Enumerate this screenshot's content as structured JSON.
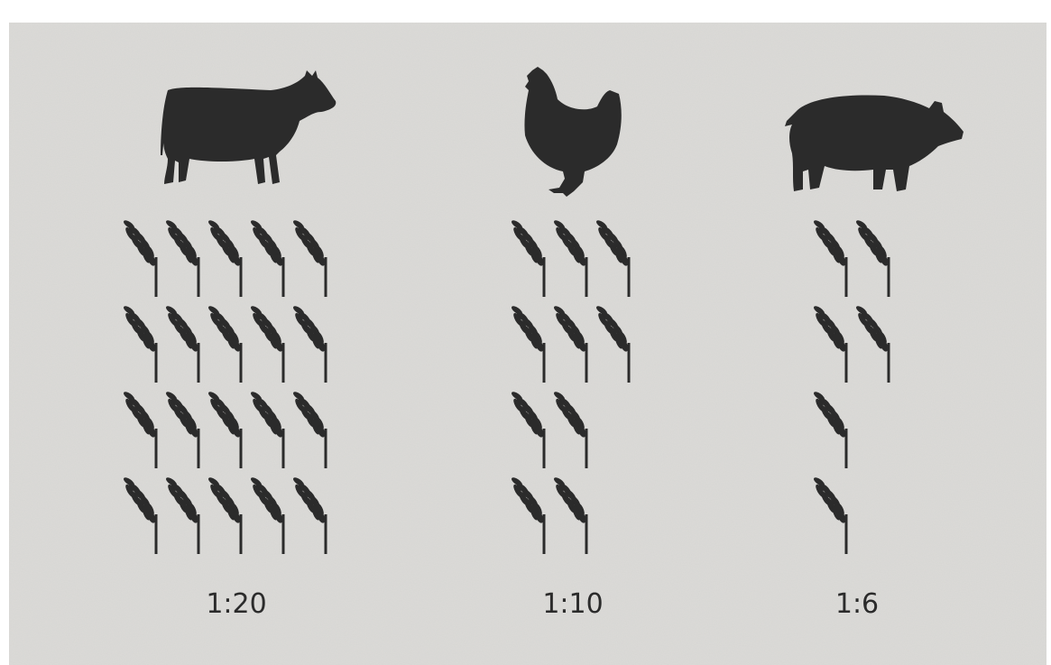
{
  "chart_data": {
    "type": "pictogram",
    "values": [
      20,
      10,
      6
    ],
    "value_labels": [
      "1:20",
      "1:10",
      "1:6"
    ],
    "color": "#2b2b2b"
  }
}
